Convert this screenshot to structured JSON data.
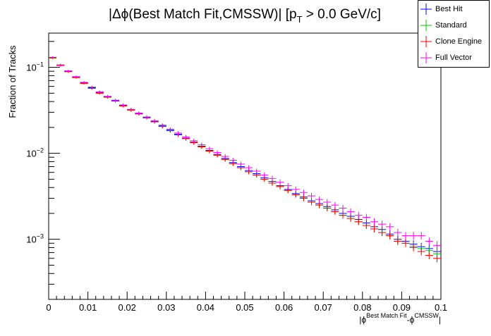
{
  "chart_data": {
    "type": "scatter",
    "title_main": "|Δϕ(Best Match Fit,CMSSW)| [p",
    "title_sub": "T",
    "title_tail": " > 0.0 GeV/c]",
    "ylabel": "Fraction of Tracks",
    "xlabel_parts": {
      "open": "|ϕ",
      "sup1": "Best Match Fit",
      "mid": "-ϕ",
      "sup2": "CMSSW",
      "close": "|"
    },
    "xlim": [
      0,
      0.1
    ],
    "ylim_log": [
      0.0002,
      0.25
    ],
    "yscale": "log",
    "x_ticks": [
      {
        "v": 0,
        "label": "0"
      },
      {
        "v": 0.01,
        "label": "0.01"
      },
      {
        "v": 0.02,
        "label": "0.02"
      },
      {
        "v": 0.03,
        "label": "0.03"
      },
      {
        "v": 0.04,
        "label": "0.04"
      },
      {
        "v": 0.05,
        "label": "0.05"
      },
      {
        "v": 0.06,
        "label": "0.06"
      },
      {
        "v": 0.07,
        "label": "0.07"
      },
      {
        "v": 0.08,
        "label": "0.08"
      },
      {
        "v": 0.09,
        "label": "0.09"
      },
      {
        "v": 0.1,
        "label": "0.1"
      }
    ],
    "y_ticks": [
      {
        "v": 0.1,
        "base": "10",
        "exp": "−1"
      },
      {
        "v": 0.01,
        "base": "10",
        "exp": "−2"
      },
      {
        "v": 0.001,
        "base": "10",
        "exp": "−3"
      }
    ],
    "bin_width": 0.002,
    "legend_position": "top-right",
    "series": [
      {
        "name": "Best Hit",
        "color": "#0000ff",
        "values": [
          0.13,
          0.106,
          0.09,
          0.077,
          0.066,
          0.058,
          0.051,
          0.0455,
          0.041,
          0.036,
          0.032,
          0.029,
          0.026,
          0.0235,
          0.0208,
          0.0186,
          0.0167,
          0.015,
          0.0135,
          0.0121,
          0.0108,
          0.0097,
          0.0087,
          0.0078,
          0.007,
          0.0063,
          0.0058,
          0.0052,
          0.0047,
          0.0042,
          0.0038,
          0.0034,
          0.0031,
          0.0028,
          0.0026,
          0.0024,
          0.0022,
          0.002,
          0.00185,
          0.0017,
          0.00155,
          0.0014,
          0.0013,
          0.00115,
          0.001,
          0.00095,
          0.00088,
          0.00082,
          0.00078,
          0.00072
        ]
      },
      {
        "name": "Standard",
        "color": "#00cc00",
        "values": [
          0.128,
          0.105,
          0.089,
          0.076,
          0.065,
          0.057,
          0.05,
          0.0448,
          0.0405,
          0.0355,
          0.0318,
          0.0287,
          0.0258,
          0.0232,
          0.0205,
          0.0183,
          0.0164,
          0.0148,
          0.0133,
          0.0119,
          0.0106,
          0.0095,
          0.0085,
          0.0076,
          0.0068,
          0.0061,
          0.0056,
          0.005,
          0.0045,
          0.0041,
          0.0037,
          0.0033,
          0.003,
          0.0027,
          0.0025,
          0.0023,
          0.0021,
          0.0019,
          0.00175,
          0.0016,
          0.00145,
          0.00132,
          0.0012,
          0.0011,
          0.00095,
          0.0009,
          0.00083,
          0.00078,
          0.00074,
          0.00068
        ]
      },
      {
        "name": "Clone Engine",
        "color": "#ff0000",
        "values": [
          0.129,
          0.105,
          0.089,
          0.076,
          0.065,
          0.057,
          0.05,
          0.045,
          0.0405,
          0.0355,
          0.0318,
          0.0287,
          0.0258,
          0.0232,
          0.0205,
          0.0183,
          0.0164,
          0.0148,
          0.0133,
          0.0119,
          0.0106,
          0.0095,
          0.0085,
          0.0076,
          0.0068,
          0.0061,
          0.0056,
          0.005,
          0.0045,
          0.0041,
          0.0037,
          0.0033,
          0.003,
          0.0027,
          0.0025,
          0.0023,
          0.0021,
          0.0019,
          0.00175,
          0.0016,
          0.00145,
          0.00132,
          0.0012,
          0.0011,
          0.00095,
          0.0009,
          0.0008,
          0.00072,
          0.00065,
          0.0006
        ]
      },
      {
        "name": "Full Vector",
        "color": "#ff00ff",
        "values": [
          0.131,
          0.107,
          0.091,
          0.078,
          0.067,
          0.059,
          0.052,
          0.046,
          0.0415,
          0.0365,
          0.0325,
          0.0294,
          0.0265,
          0.024,
          0.0213,
          0.0191,
          0.0172,
          0.0155,
          0.014,
          0.0126,
          0.0113,
          0.0102,
          0.0092,
          0.0083,
          0.0075,
          0.0068,
          0.0062,
          0.0056,
          0.0051,
          0.0046,
          0.0042,
          0.0038,
          0.0035,
          0.0032,
          0.0029,
          0.0027,
          0.0025,
          0.0023,
          0.0021,
          0.0019,
          0.0018,
          0.0016,
          0.0015,
          0.0014,
          0.0012,
          0.0011,
          0.0011,
          0.0011,
          0.00095,
          0.00085
        ]
      }
    ]
  }
}
